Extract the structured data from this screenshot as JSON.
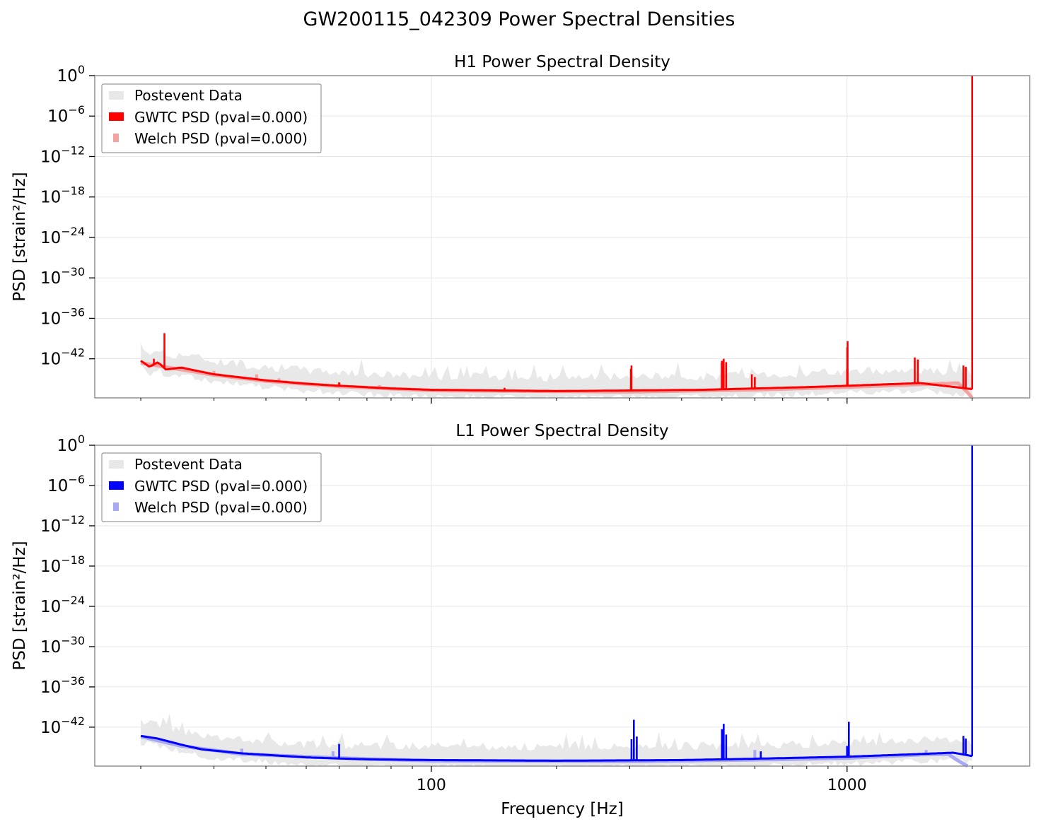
{
  "figure": {
    "title": "GW200115_042309 Power Spectral Densities"
  },
  "colors": {
    "postevent": "#e8e8e8",
    "h1_gwtc": "#ff0000",
    "h1_welch": "#f4a3a3",
    "l1_gwtc": "#0000ff",
    "l1_welch": "#a8a8f4",
    "frame": "#888888",
    "grid": "#e6e6e6"
  },
  "chart_data": [
    {
      "type": "line",
      "title": "H1 Power Spectral Density",
      "xlabel": "",
      "ylabel": "PSD [strain²/Hz]",
      "xscale": "log",
      "yscale": "log",
      "xlim": [
        15.5,
        2750
      ],
      "ylim_log10": [
        -47.8,
        0
      ],
      "xtick_labels": [
        "100",
        "1000"
      ],
      "ytick_log10": [
        0,
        -6,
        -12,
        -18,
        -24,
        -30,
        -36,
        -42
      ],
      "grid": true,
      "legend": {
        "position": "top-left",
        "entries": [
          {
            "label": "Postevent Data",
            "key": "postevent"
          },
          {
            "label": "GWTC PSD (pval=0.000)",
            "key": "h1_gwtc"
          },
          {
            "label": "Welch PSD (pval=0.000)",
            "key": "h1_welch"
          }
        ]
      },
      "series": [
        {
          "key": "gwtc",
          "baseline_log10": [
            [
              20,
              -42.3
            ],
            [
              21,
              -43.2
            ],
            [
              22,
              -42.5
            ],
            [
              23,
              -43.6
            ],
            [
              25,
              -43.3
            ],
            [
              30,
              -44.3
            ],
            [
              40,
              -45.2
            ],
            [
              50,
              -45.7
            ],
            [
              60,
              -46.0
            ],
            [
              80,
              -46.4
            ],
            [
              100,
              -46.6
            ],
            [
              200,
              -46.8
            ],
            [
              300,
              -46.7
            ],
            [
              450,
              -46.6
            ],
            [
              600,
              -46.4
            ],
            [
              800,
              -46.2
            ],
            [
              1000,
              -46.0
            ],
            [
              1500,
              -45.6
            ],
            [
              2000,
              -46.5
            ]
          ],
          "lines": [
            [
              21.5,
              -42.0
            ],
            [
              22.8,
              -38.2
            ],
            [
              60,
              -45.5
            ],
            [
              150,
              -46.3
            ],
            [
              302,
              -43.5
            ],
            [
              303,
              -43.0
            ],
            [
              500,
              -42.3
            ],
            [
              505,
              -42.0
            ],
            [
              512,
              -42.5
            ],
            [
              590,
              -44.3
            ],
            [
              600,
              -44.7
            ],
            [
              1001,
              -40.3
            ],
            [
              1003,
              -39.4
            ],
            [
              1455,
              -41.8
            ],
            [
              1480,
              -42.1
            ],
            [
              1905,
              -43.0
            ],
            [
              1930,
              -43.2
            ],
            [
              2000,
              0
            ]
          ]
        },
        {
          "key": "welch",
          "baseline_log10": [
            [
              20,
              -42.6
            ],
            [
              25,
              -43.6
            ],
            [
              30,
              -44.4
            ],
            [
              40,
              -45.3
            ],
            [
              60,
              -46.1
            ],
            [
              100,
              -46.7
            ],
            [
              300,
              -46.9
            ],
            [
              600,
              -46.6
            ],
            [
              1000,
              -46.2
            ],
            [
              1500,
              -45.8
            ],
            [
              1850,
              -45.6
            ],
            [
              1950,
              -47.0
            ],
            [
              2000,
              -47.8
            ]
          ],
          "lines": [
            [
              30,
              -43.8
            ],
            [
              38,
              -44.3
            ],
            [
              43,
              -44.9
            ],
            [
              60,
              -45.6
            ],
            [
              75,
              -45.9
            ],
            [
              500,
              -42.6
            ],
            [
              1001,
              -43.5
            ]
          ]
        }
      ]
    },
    {
      "type": "line",
      "title": "L1 Power Spectral Density",
      "xlabel": "Frequency [Hz]",
      "ylabel": "PSD [strain²/Hz]",
      "xscale": "log",
      "yscale": "log",
      "xlim": [
        15.5,
        2750
      ],
      "ylim_log10": [
        -47.8,
        0
      ],
      "xtick_labels": [
        "100",
        "1000"
      ],
      "ytick_log10": [
        0,
        -6,
        -12,
        -18,
        -24,
        -30,
        -36,
        -42
      ],
      "grid": true,
      "legend": {
        "position": "top-left",
        "entries": [
          {
            "label": "Postevent Data",
            "key": "postevent"
          },
          {
            "label": "GWTC PSD (pval=0.000)",
            "key": "l1_gwtc"
          },
          {
            "label": "Welch PSD (pval=0.000)",
            "key": "l1_welch"
          }
        ]
      },
      "series": [
        {
          "key": "gwtc",
          "baseline_log10": [
            [
              20,
              -43.3
            ],
            [
              22,
              -43.7
            ],
            [
              25,
              -44.6
            ],
            [
              28,
              -45.3
            ],
            [
              35,
              -45.9
            ],
            [
              50,
              -46.5
            ],
            [
              70,
              -46.8
            ],
            [
              100,
              -46.9
            ],
            [
              200,
              -47.0
            ],
            [
              400,
              -46.9
            ],
            [
              600,
              -46.7
            ],
            [
              1000,
              -46.4
            ],
            [
              1500,
              -46.0
            ],
            [
              1800,
              -45.8
            ],
            [
              2000,
              -46.3
            ]
          ],
          "lines": [
            [
              60,
              -44.5
            ],
            [
              303,
              -43.8
            ],
            [
              307,
              -40.9
            ],
            [
              312,
              -43.4
            ],
            [
              500,
              -42.3
            ],
            [
              505,
              -41.5
            ],
            [
              512,
              -43.1
            ],
            [
              620,
              -45.6
            ],
            [
              1000,
              -44.8
            ],
            [
              1010,
              -41.2
            ],
            [
              1905,
              -43.3
            ],
            [
              1930,
              -43.7
            ],
            [
              2000,
              0
            ]
          ]
        },
        {
          "key": "welch",
          "baseline_log10": [
            [
              20,
              -43.4
            ],
            [
              25,
              -44.8
            ],
            [
              35,
              -46.0
            ],
            [
              60,
              -46.6
            ],
            [
              100,
              -47.0
            ],
            [
              300,
              -47.1
            ],
            [
              700,
              -46.8
            ],
            [
              1000,
              -46.6
            ],
            [
              1500,
              -46.1
            ],
            [
              1750,
              -46.0
            ],
            [
              1850,
              -47.0
            ],
            [
              1950,
              -47.8
            ]
          ],
          "lines": [
            [
              35,
              -45.2
            ],
            [
              58,
              -45.6
            ],
            [
              600,
              -45.4
            ],
            [
              1550,
              -45.4
            ]
          ]
        }
      ]
    }
  ]
}
